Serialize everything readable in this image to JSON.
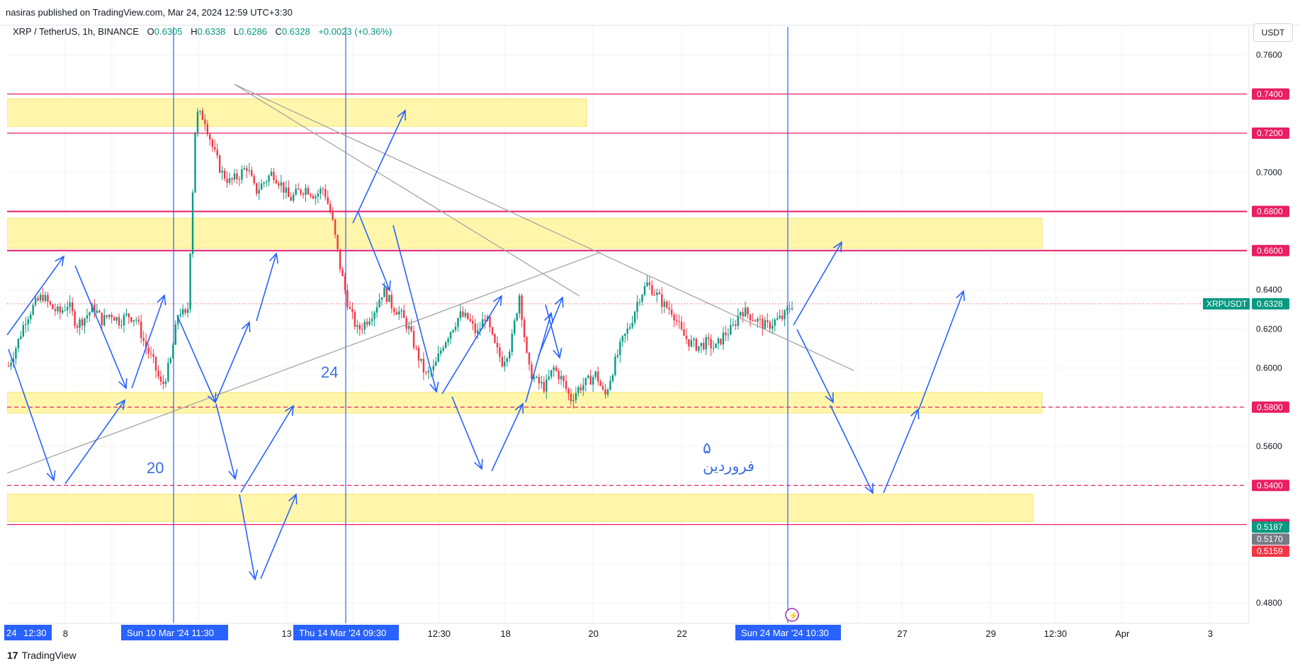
{
  "header": {
    "published_by": "nasiras published on TradingView.com, Mar 24, 2024 12:59 UTC+3:30"
  },
  "legend": {
    "symbol": "XRP / TetherUS, 1h, BINANCE",
    "o_label": "O",
    "o": "0.6305",
    "h_label": "H",
    "h": "0.6338",
    "l_label": "L",
    "l": "0.6286",
    "c_label": "C",
    "c": "0.6328",
    "change": "+0.0023 (+0.36%)"
  },
  "unit_button": "USDT",
  "footer": {
    "logo": "17",
    "brand": "TradingView"
  },
  "colors": {
    "up": "#089981",
    "down": "#f23645",
    "level": "#e91e63",
    "zone": "#fff59d",
    "arrow": "#2962ff",
    "trend": "#9e9e9e"
  },
  "chart_data": {
    "type": "candlestick",
    "symbol": "XRPUSDT",
    "ylim": [
      0.47,
      0.77
    ],
    "y_ticks": [
      "0.7600",
      "0.7000",
      "0.6400",
      "0.6200",
      "0.6000",
      "0.5600",
      "0.4800"
    ],
    "x_ticks": [
      "8",
      "13",
      "12:30",
      "18",
      "20",
      "22",
      "27",
      "29",
      "12:30",
      "Apr",
      "3"
    ],
    "x_edge_labels": [
      "24",
      "12:30"
    ],
    "x_highlight_labels": [
      "Sun 10 Mar '24   11:30",
      "Thu 14 Mar '24   09:30",
      "Sun 24 Mar '24   10:30"
    ],
    "price_levels": [
      {
        "label": "0.7400",
        "value": 0.74,
        "style": "solid"
      },
      {
        "label": "0.7200",
        "value": 0.72,
        "style": "solid"
      },
      {
        "label": "0.6800",
        "value": 0.68,
        "style": "solid"
      },
      {
        "label": "0.6600",
        "value": 0.66,
        "style": "solid"
      },
      {
        "label": "0.5800",
        "value": 0.58,
        "style": "dashed"
      },
      {
        "label": "0.5400",
        "value": 0.54,
        "style": "dashed"
      },
      {
        "label": "0.5200",
        "value": 0.52,
        "style": "solid"
      }
    ],
    "current_price": {
      "name": "XRPUSDT",
      "label": "0.6328",
      "value": 0.6328
    },
    "extra_price_labels": [
      {
        "label": "0.5187",
        "value": 0.5187,
        "color": "#089981"
      },
      {
        "label": "0.5170",
        "value": 0.517,
        "color": "#787b86"
      },
      {
        "label": "0.5159",
        "value": 0.5159,
        "color": "#f23645"
      }
    ],
    "zones": [
      {
        "from": 0.7235,
        "to": 0.7375
      },
      {
        "from": 0.6612,
        "to": 0.6765
      },
      {
        "from": 0.577,
        "to": 0.5875
      },
      {
        "from": 0.5215,
        "to": 0.5355
      }
    ],
    "price_path": [
      0.601,
      0.612,
      0.625,
      0.632,
      0.637,
      0.631,
      0.628,
      0.633,
      0.622,
      0.626,
      0.631,
      0.624,
      0.628,
      0.624,
      0.627,
      0.625,
      0.612,
      0.603,
      0.59,
      0.603,
      0.63,
      0.625,
      0.73,
      0.728,
      0.712,
      0.7,
      0.695,
      0.698,
      0.703,
      0.69,
      0.695,
      0.7,
      0.694,
      0.686,
      0.69,
      0.692,
      0.688,
      0.692,
      0.676,
      0.65,
      0.63,
      0.619,
      0.624,
      0.63,
      0.64,
      0.632,
      0.628,
      0.62,
      0.607,
      0.596,
      0.6,
      0.612,
      0.62,
      0.627,
      0.625,
      0.617,
      0.627,
      0.612,
      0.603,
      0.612,
      0.638,
      0.6,
      0.593,
      0.59,
      0.6,
      0.594,
      0.584,
      0.59,
      0.593,
      0.597,
      0.585,
      0.6,
      0.613,
      0.622,
      0.636,
      0.643,
      0.638,
      0.632,
      0.629,
      0.618,
      0.613,
      0.611,
      0.613,
      0.61,
      0.617,
      0.62,
      0.63,
      0.627,
      0.624,
      0.621,
      0.624,
      0.626,
      0.6328
    ],
    "annotations": [
      "20",
      "24",
      "۵",
      "فروردین"
    ]
  }
}
